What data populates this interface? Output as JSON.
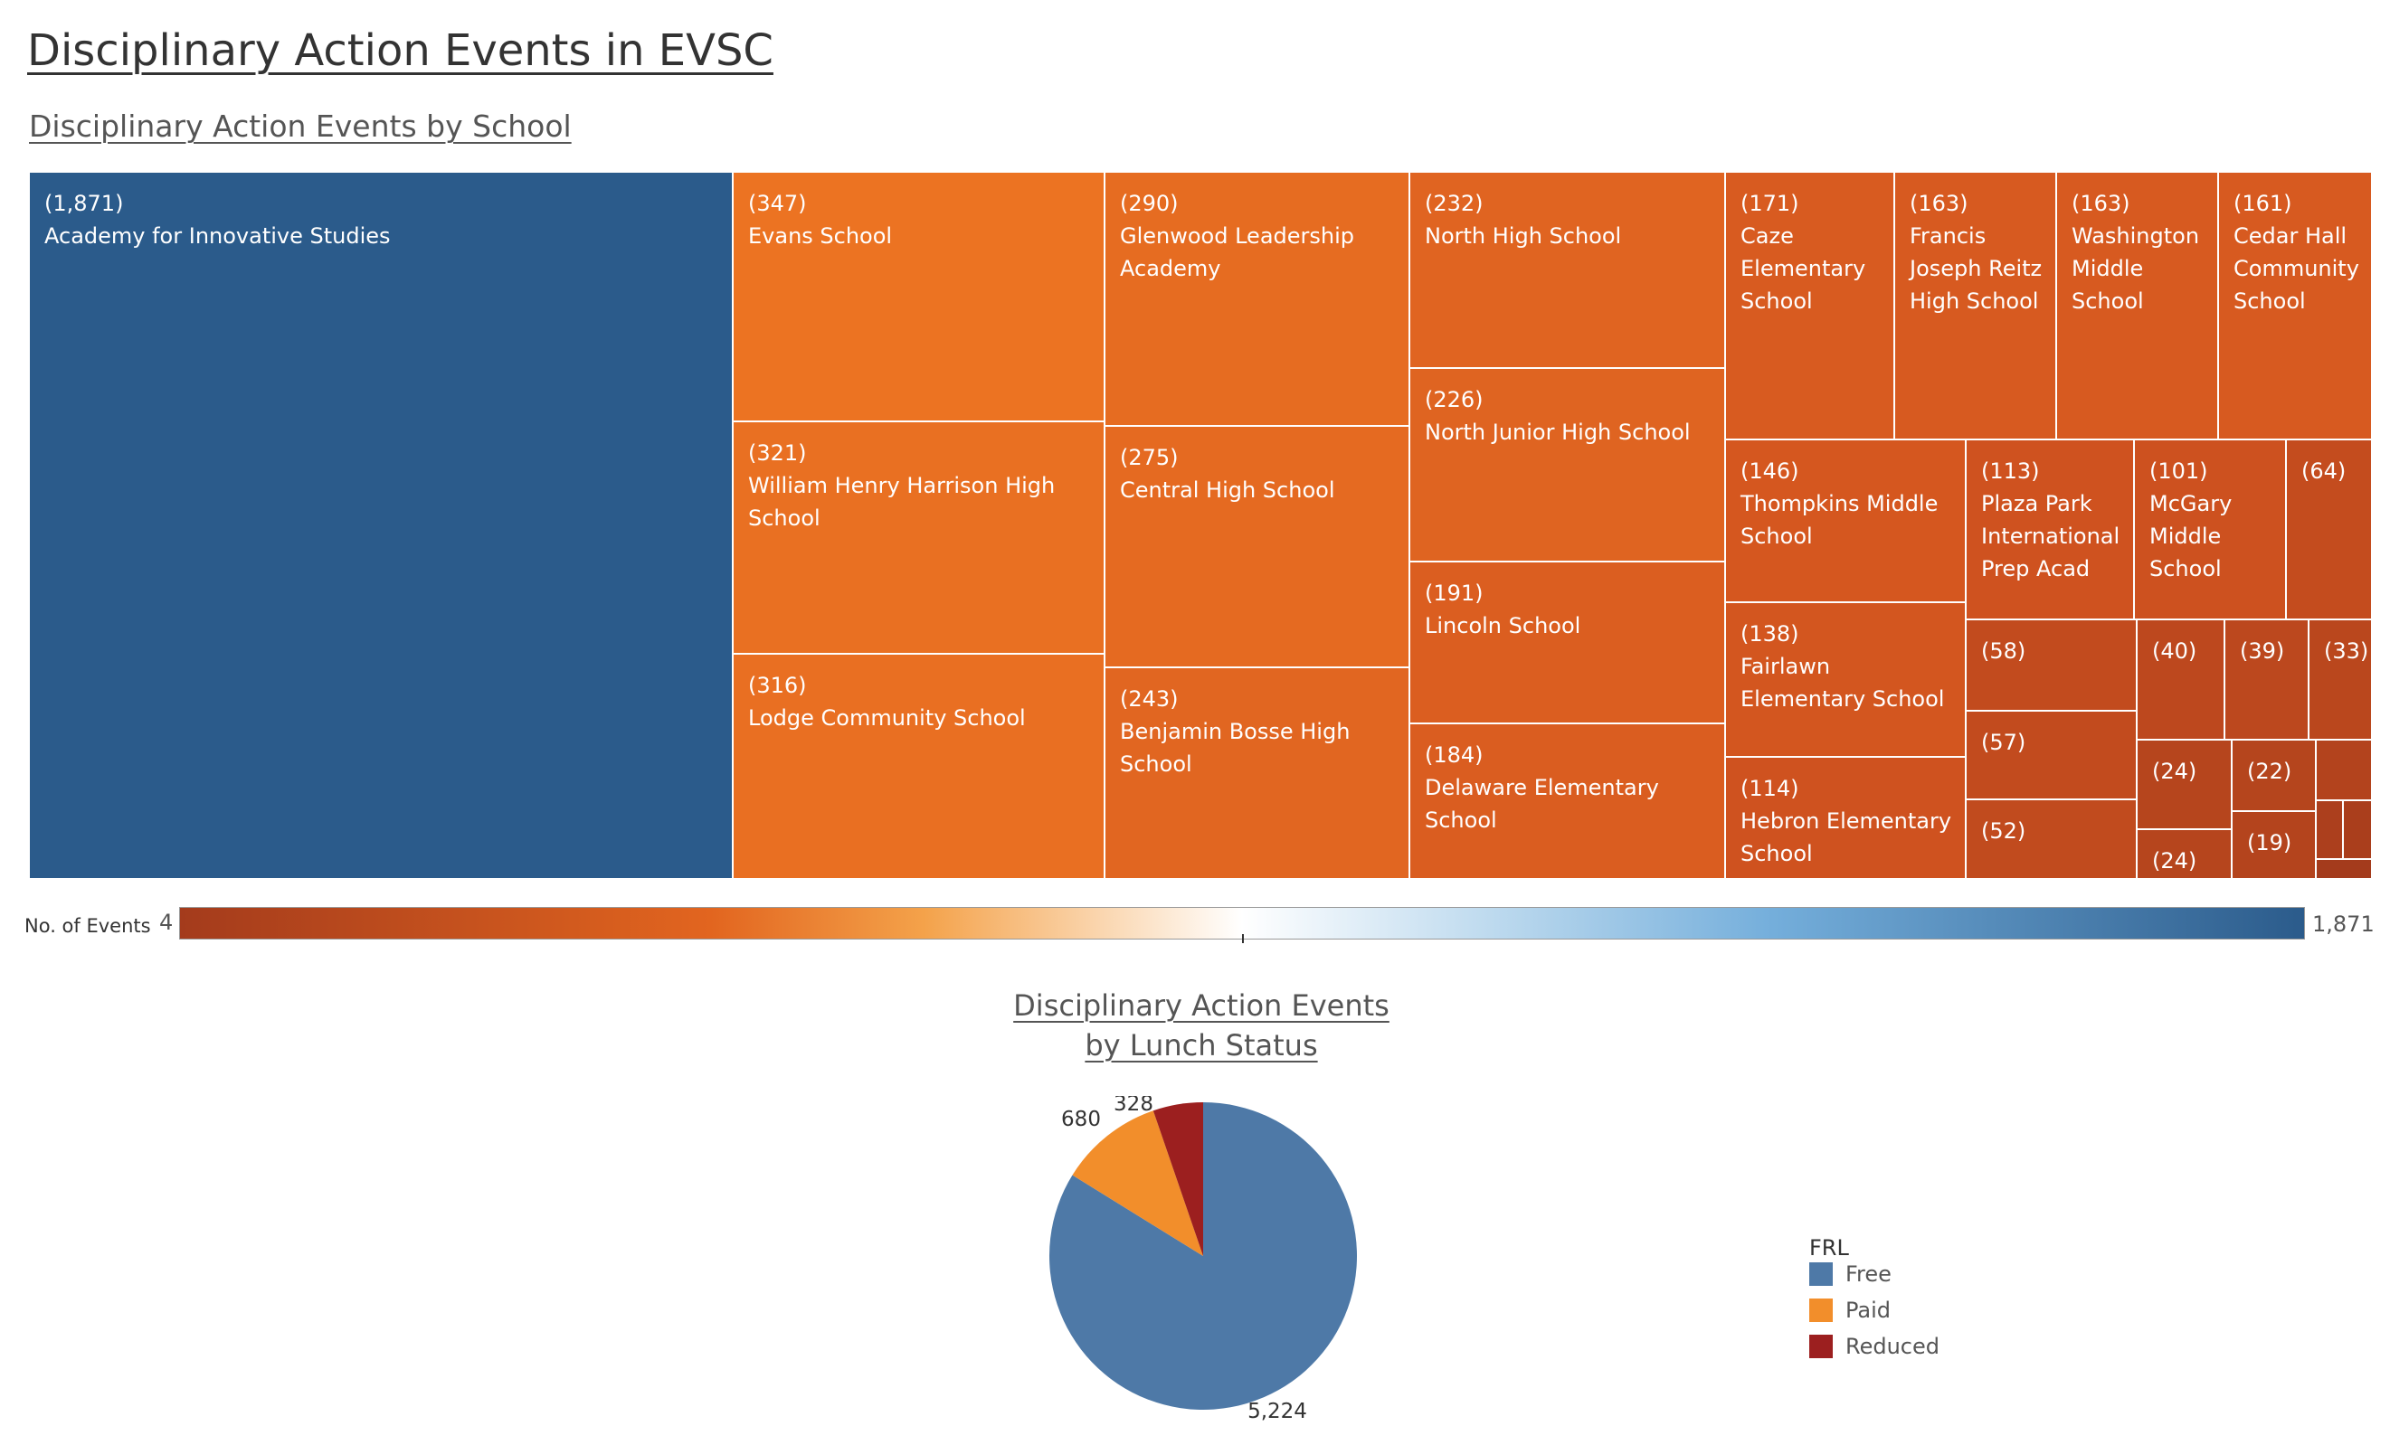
{
  "title": "Disciplinary Action Events in EVSC",
  "chart_data": [
    {
      "type": "treemap",
      "title": "Disciplinary Action Events by School",
      "colors": {
        "min": "#a43b1c",
        "mid": "#ffffff",
        "max": "#2b5b8b"
      },
      "legend": {
        "label": "No. of Events",
        "min": "4",
        "max": "1,871"
      },
      "items": [
        {
          "label": "Academy for Innovative Studies",
          "value_text": "(1,871)",
          "value": 1871
        },
        {
          "label": "Evans School",
          "value_text": "(347)",
          "value": 347
        },
        {
          "label": "William Henry Harrison High School",
          "value_text": "(321)",
          "value": 321
        },
        {
          "label": "Lodge Community School",
          "value_text": "(316)",
          "value": 316
        },
        {
          "label": "Glenwood Leadership Academy",
          "value_text": "(290)",
          "value": 290
        },
        {
          "label": "Central High School",
          "value_text": "(275)",
          "value": 275
        },
        {
          "label": "Benjamin Bosse High School",
          "value_text": "(243)",
          "value": 243
        },
        {
          "label": "North High School",
          "value_text": "(232)",
          "value": 232
        },
        {
          "label": "North Junior High School",
          "value_text": "(226)",
          "value": 226
        },
        {
          "label": "Lincoln School",
          "value_text": "(191)",
          "value": 191
        },
        {
          "label": "Delaware Elementary School",
          "value_text": "(184)",
          "value": 184
        },
        {
          "label": "Caze Elementary School",
          "value_text": "(171)",
          "value": 171
        },
        {
          "label": "Francis Joseph Reitz High School",
          "value_text": "(163)",
          "value": 163
        },
        {
          "label": "Washington Middle School",
          "value_text": "(163)",
          "value": 163
        },
        {
          "label": "Cedar Hall Community School",
          "value_text": "(161)",
          "value": 161
        },
        {
          "label": "Thompkins Middle School",
          "value_text": "(146)",
          "value": 146
        },
        {
          "label": "Plaza Park International Prep Acad",
          "value_text": "(113)",
          "value": 113
        },
        {
          "label": "McGary Middle School",
          "value_text": "(101)",
          "value": 101
        },
        {
          "label": "",
          "value_text": "(64)",
          "value": 64
        },
        {
          "label": "Fairlawn Elementary School",
          "value_text": "(138)",
          "value": 138
        },
        {
          "label": "Hebron Elementary School",
          "value_text": "(114)",
          "value": 114
        },
        {
          "label": "",
          "value_text": "(58)",
          "value": 58
        },
        {
          "label": "",
          "value_text": "(57)",
          "value": 57
        },
        {
          "label": "",
          "value_text": "(52)",
          "value": 52
        },
        {
          "label": "",
          "value_text": "(40)",
          "value": 40
        },
        {
          "label": "",
          "value_text": "(39)",
          "value": 39
        },
        {
          "label": "",
          "value_text": "(33)",
          "value": 33
        },
        {
          "label": "",
          "value_text": "(24)",
          "value": 24
        },
        {
          "label": "",
          "value_text": "(22)",
          "value": 22
        },
        {
          "label": "",
          "value_text": "(24)",
          "value": 24
        },
        {
          "label": "",
          "value_text": "(19)",
          "value": 19
        },
        {
          "label": "",
          "value_text": "",
          "value": 18
        },
        {
          "label": "",
          "value_text": "",
          "value": 8
        },
        {
          "label": "",
          "value_text": "",
          "value": 6
        },
        {
          "label": "",
          "value_text": "",
          "value": 4
        }
      ]
    },
    {
      "type": "pie",
      "title_lines": [
        "Disciplinary Action Events",
        "by Lunch Status"
      ],
      "legend_title": "FRL",
      "slices": [
        {
          "name": "Free",
          "value": 5224,
          "label": "5,224",
          "color": "#4e79a7"
        },
        {
          "name": "Paid",
          "value": 680,
          "label": "680",
          "color": "#f28e2b"
        },
        {
          "name": "Reduced",
          "value": 328,
          "label": "328",
          "color": "#9c1f1f"
        }
      ]
    }
  ]
}
